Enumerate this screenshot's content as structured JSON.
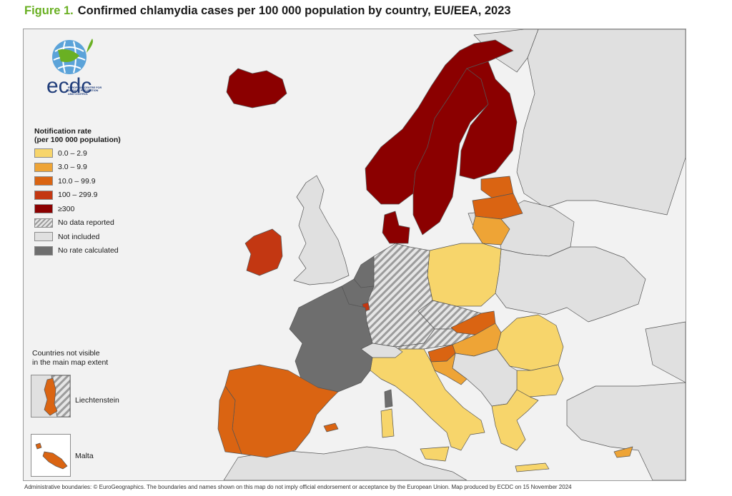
{
  "figure": {
    "label": "Figure 1.",
    "title": "Confirmed chlamydia cases per 100 000 population by country, EU/EEA, 2023"
  },
  "logo": {
    "name": "ecdc",
    "text": "EUROPEAN CENTRE FOR DISEASE PREVENTION AND CONTROL"
  },
  "legend": {
    "title_line1": "Notification rate",
    "title_line2": "(per 100 000 population)",
    "items": [
      {
        "label": "0.0 – 2.9",
        "color": "#f7d56b"
      },
      {
        "label": "3.0 – 9.9",
        "color": "#eea436"
      },
      {
        "label": "10.0 – 99.9",
        "color": "#da6412"
      },
      {
        "label": "100 – 299.9",
        "color": "#c33712"
      },
      {
        "label": "≥300",
        "color": "#8b0000"
      },
      {
        "label": "No data reported",
        "color": "hatch"
      },
      {
        "label": "Not included",
        "color": "#e0e0e0"
      },
      {
        "label": "No rate calculated",
        "color": "#6e6e6e"
      }
    ]
  },
  "small_countries": {
    "title_line1": "Countries not visible",
    "title_line2": "in the main map extent",
    "items": [
      {
        "name": "Liechtenstein",
        "category": "10.0 – 99.9"
      },
      {
        "name": "Malta",
        "category": "10.0 – 99.9"
      }
    ]
  },
  "countries": [
    {
      "name": "Iceland",
      "category": "≥300"
    },
    {
      "name": "Norway",
      "category": "≥300"
    },
    {
      "name": "Sweden",
      "category": "≥300"
    },
    {
      "name": "Finland",
      "category": "≥300"
    },
    {
      "name": "Denmark",
      "category": "≥300"
    },
    {
      "name": "Ireland",
      "category": "100 – 299.9"
    },
    {
      "name": "Luxembourg",
      "category": "100 – 299.9"
    },
    {
      "name": "Estonia",
      "category": "10.0 – 99.9"
    },
    {
      "name": "Latvia",
      "category": "10.0 – 99.9"
    },
    {
      "name": "Spain",
      "category": "10.0 – 99.9"
    },
    {
      "name": "Portugal",
      "category": "10.0 – 99.9"
    },
    {
      "name": "Slovakia",
      "category": "10.0 – 99.9"
    },
    {
      "name": "Slovenia",
      "category": "10.0 – 99.9"
    },
    {
      "name": "Cyprus",
      "category": "3.0 – 9.9"
    },
    {
      "name": "Lithuania",
      "category": "3.0 – 9.9"
    },
    {
      "name": "Hungary",
      "category": "3.0 – 9.9"
    },
    {
      "name": "Croatia",
      "category": "3.0 – 9.9"
    },
    {
      "name": "Poland",
      "category": "0.0 – 2.9"
    },
    {
      "name": "Romania",
      "category": "0.0 – 2.9"
    },
    {
      "name": "Bulgaria",
      "category": "0.0 – 2.9"
    },
    {
      "name": "Greece",
      "category": "0.0 – 2.9"
    },
    {
      "name": "Italy",
      "category": "0.0 – 2.9"
    },
    {
      "name": "Germany",
      "category": "No data reported"
    },
    {
      "name": "Czechia",
      "category": "No data reported"
    },
    {
      "name": "Austria",
      "category": "No data reported"
    },
    {
      "name": "France",
      "category": "No rate calculated"
    },
    {
      "name": "Belgium",
      "category": "No rate calculated"
    },
    {
      "name": "Netherlands",
      "category": "No rate calculated"
    },
    {
      "name": "United Kingdom",
      "category": "Not included"
    },
    {
      "name": "Switzerland",
      "category": "Not included"
    },
    {
      "name": "Ukraine",
      "category": "Not included"
    },
    {
      "name": "Belarus",
      "category": "Not included"
    },
    {
      "name": "Türkiye",
      "category": "Not included"
    },
    {
      "name": "Serbia",
      "category": "Not included"
    }
  ],
  "footer": "Administrative boundaries: © EuroGeographics. The boundaries and names shown on this map do not imply official endorsement or acceptance by the European Union. Map produced by ECDC on 15 November 2024"
}
